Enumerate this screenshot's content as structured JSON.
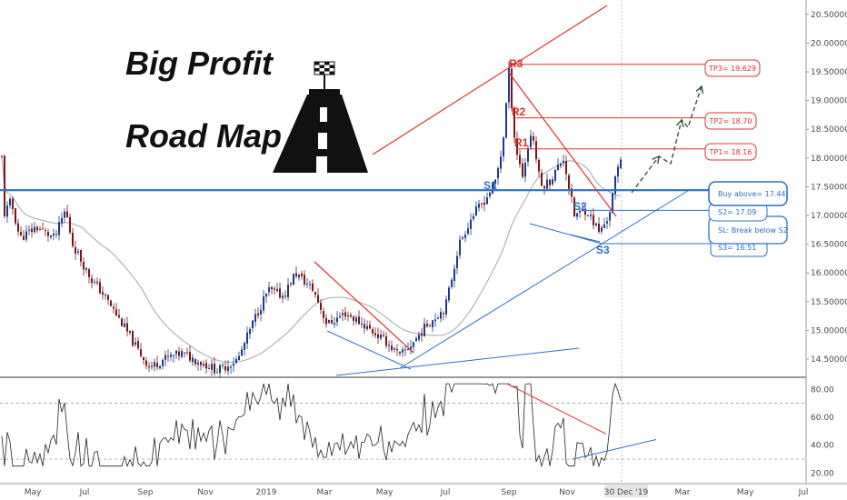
{
  "title_lines": [
    "Big Profit",
    "Road Map"
  ],
  "colors": {
    "candle_up": "#1c3a8a",
    "candle_down": "#7a1518",
    "ma": "#b3b3b3",
    "resistance": "#e0312b",
    "support": "#2f6fc7",
    "target_arrow": "#2e5b36",
    "grid": "#888888"
  },
  "chart_data": [
    {
      "type": "candlestick",
      "panel": "price",
      "y_axis": {
        "range": [
          14.2,
          20.75
        ],
        "ticks": [
          "20.50000",
          "20.00000",
          "19.50000",
          "19.00000",
          "18.50000",
          "18.00000",
          "17.50000",
          "17.00000",
          "16.50000",
          "16.00000",
          "15.50000",
          "15.00000",
          "14.50000"
        ]
      },
      "x_axis": {
        "ticks": [
          "May",
          "Jul",
          "Sep",
          "Nov",
          "2019",
          "Mar",
          "May",
          "Jul",
          "Sep",
          "Nov",
          "30 Dec '19",
          "Mar",
          "May",
          "Jul"
        ],
        "current_label": "30 Dec '19"
      },
      "moving_average": "gray line",
      "annotations": {
        "levels": [
          {
            "label": "R3",
            "value": 19.63
          },
          {
            "label": "R2",
            "value": 18.7
          },
          {
            "label": "R1",
            "value": 18.16
          },
          {
            "label": "S1",
            "value": 17.44
          },
          {
            "label": "S2",
            "value": 17.09
          },
          {
            "label": "S3",
            "value": 16.51
          }
        ],
        "boxes": [
          {
            "text": "TP3= 19.629",
            "color": "resistance"
          },
          {
            "text": "TP2= 18.70",
            "color": "resistance"
          },
          {
            "text": "TP1= 18.16",
            "color": "resistance"
          },
          {
            "text": "Buy above= 17.44",
            "color": "support"
          },
          {
            "text": "S2= 17.09",
            "color": "support"
          },
          {
            "text": "SL: Break below S2",
            "color": "support"
          },
          {
            "text": "S3= 16.51",
            "color": "support"
          }
        ]
      }
    },
    {
      "type": "line",
      "panel": "oscillator",
      "y_axis": {
        "range": [
          17,
          88
        ],
        "ticks": [
          "80.00",
          "60.00",
          "40.00",
          "20.00"
        ],
        "reference_lines": [
          70,
          30
        ]
      }
    }
  ]
}
